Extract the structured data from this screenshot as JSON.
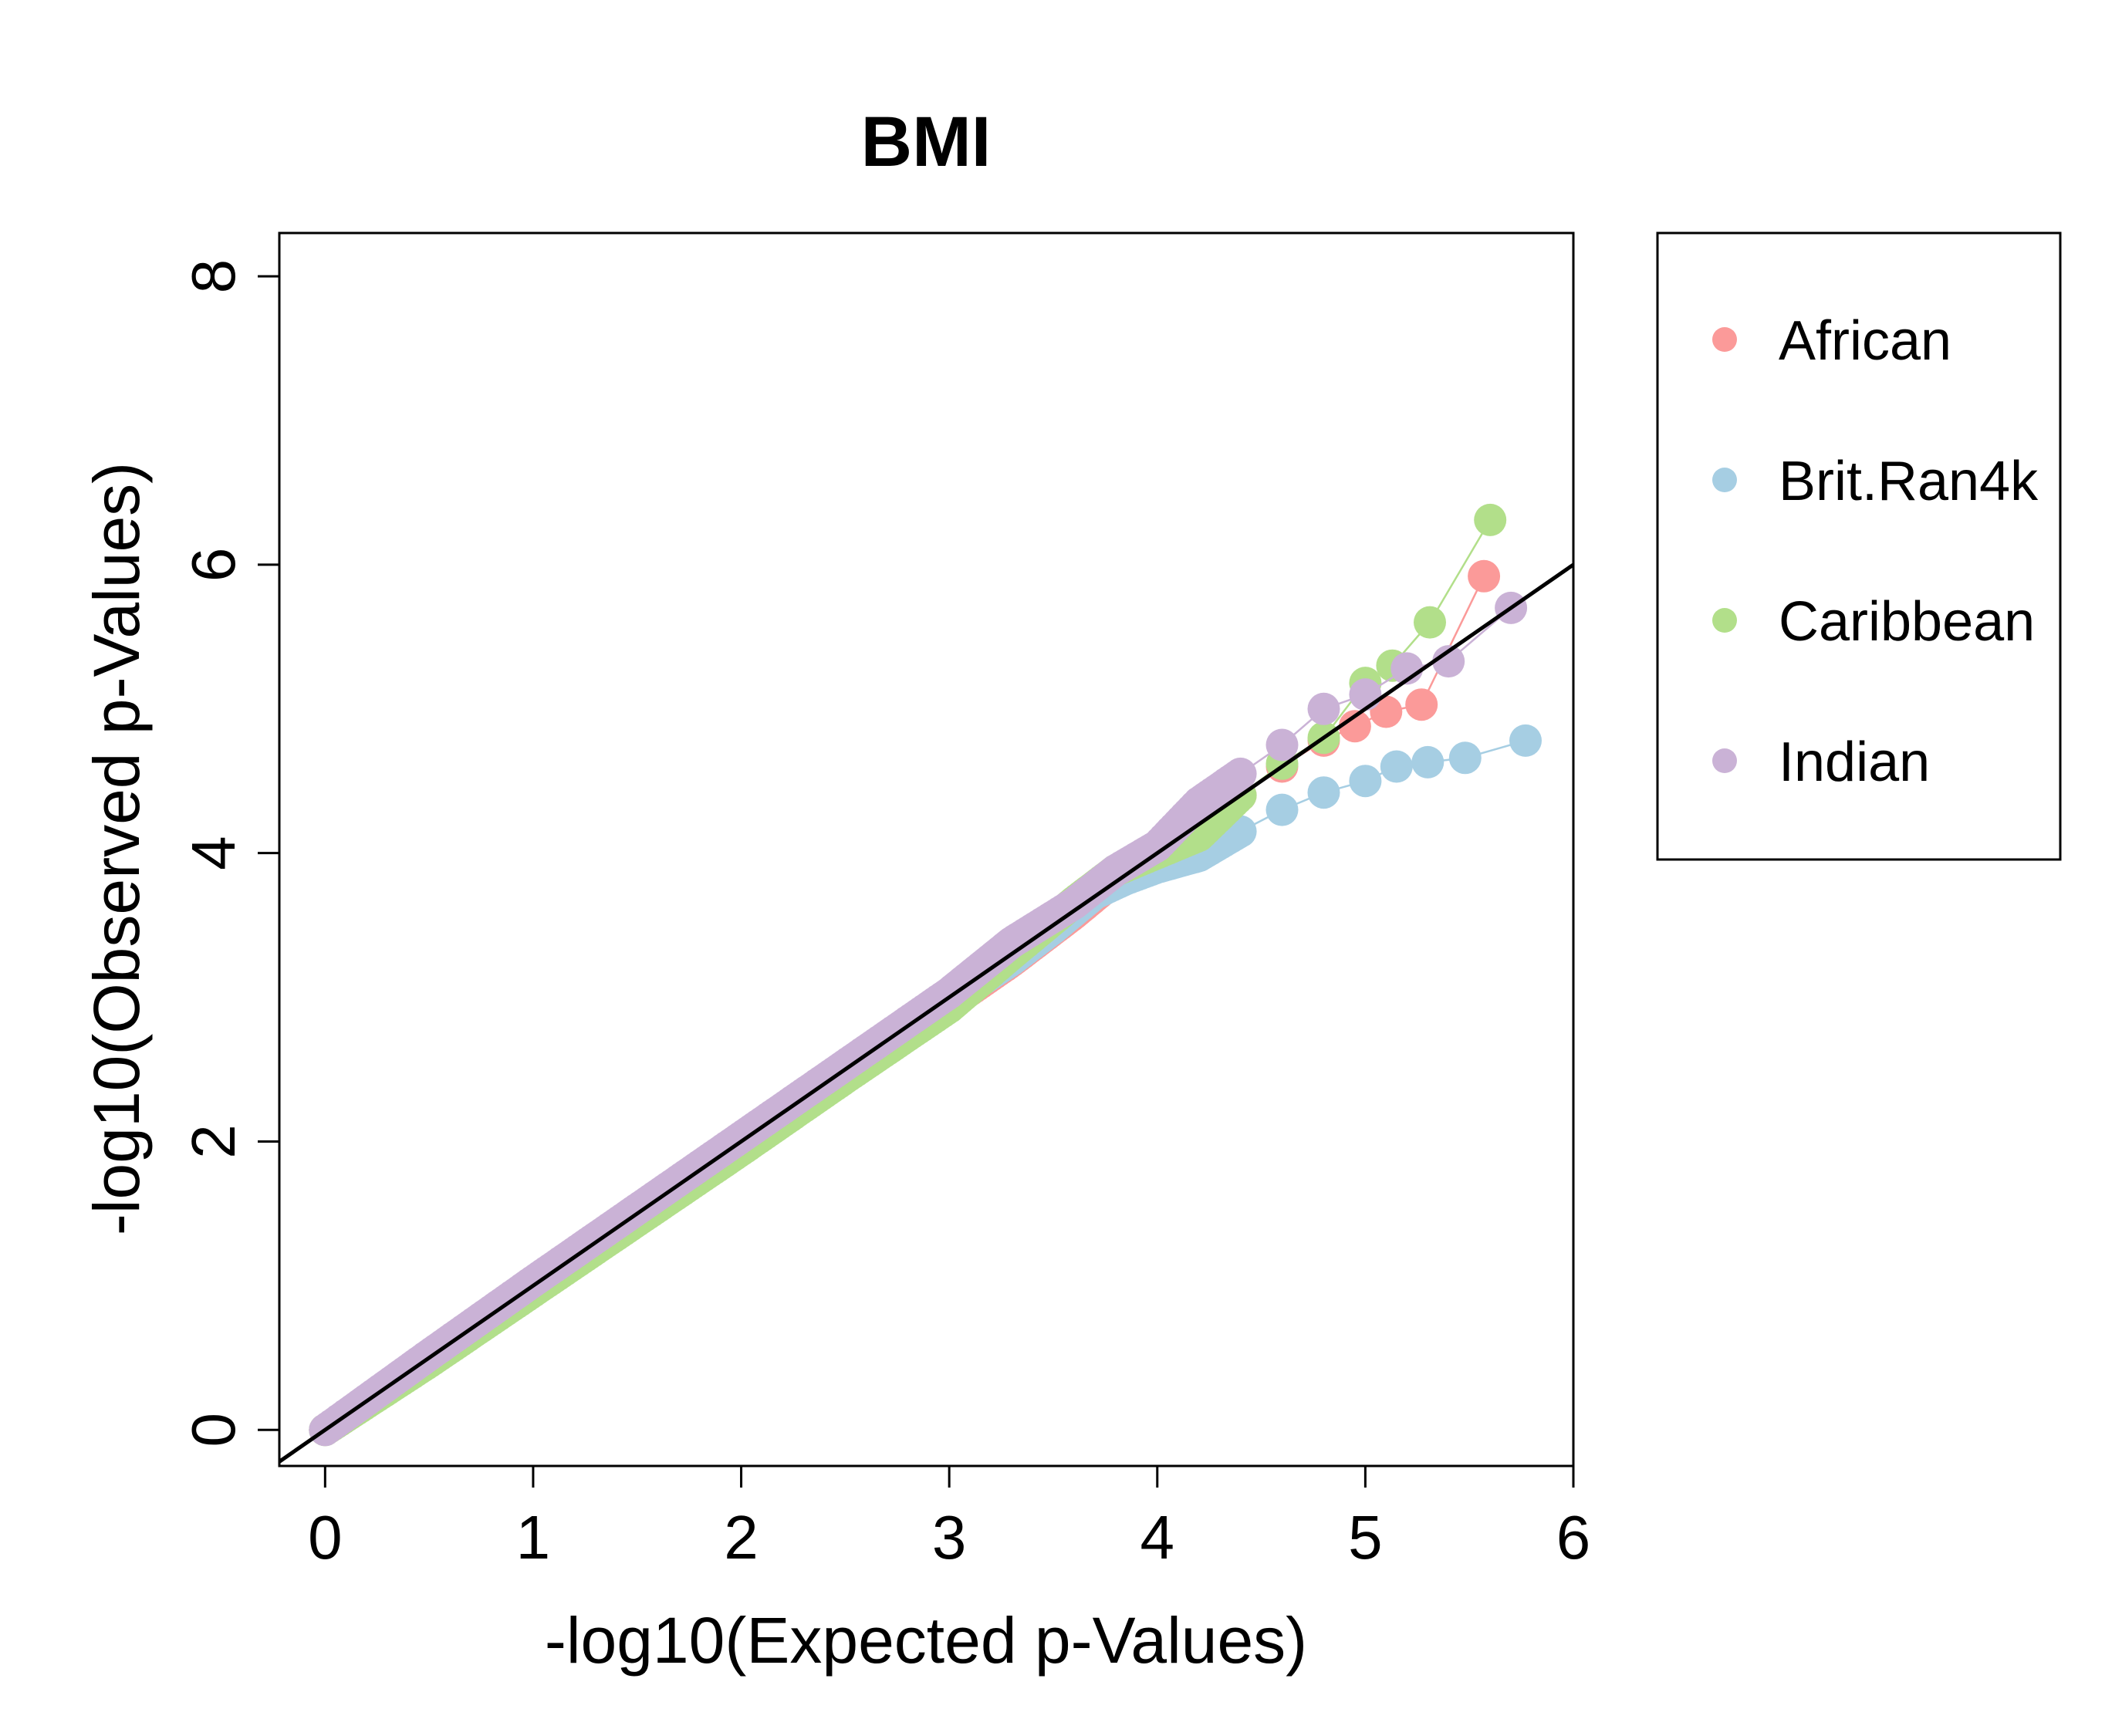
{
  "chart_data": {
    "type": "scatter",
    "title": "BMI",
    "xlabel": "-log10(Expected p-Values)",
    "ylabel": "-log10(Observed p-Values)",
    "xlim": [
      -0.22,
      6.0
    ],
    "ylim": [
      -0.25,
      8.3
    ],
    "xticks": [
      0,
      1,
      2,
      3,
      4,
      5,
      6
    ],
    "yticks": [
      0,
      2,
      4,
      6,
      8
    ],
    "grid": false,
    "legend_position": "outside-right",
    "reference_line": {
      "type": "identity",
      "color": "#000000"
    },
    "series": [
      {
        "name": "African",
        "color": "#fb9a99",
        "points": [
          [
            0,
            0
          ],
          [
            0.5,
            0.48
          ],
          [
            1,
            0.97
          ],
          [
            1.5,
            1.46
          ],
          [
            2,
            1.95
          ],
          [
            2.5,
            2.45
          ],
          [
            3,
            2.95
          ],
          [
            3.3,
            3.25
          ],
          [
            3.6,
            3.58
          ],
          [
            3.8,
            3.82
          ],
          [
            4,
            4.0
          ],
          [
            4.2,
            4.2
          ],
          [
            4.4,
            4.4
          ],
          [
            4.6,
            4.6
          ],
          [
            4.8,
            4.78
          ],
          [
            4.95,
            4.88
          ],
          [
            5.1,
            4.98
          ],
          [
            5.27,
            5.03
          ],
          [
            5.57,
            5.92
          ]
        ]
      },
      {
        "name": "Brit.Ran4k",
        "color": "#a6cee3",
        "points": [
          [
            0,
            0
          ],
          [
            0.5,
            0.49
          ],
          [
            1,
            0.98
          ],
          [
            1.5,
            1.48
          ],
          [
            2,
            1.97
          ],
          [
            2.5,
            2.47
          ],
          [
            3,
            2.97
          ],
          [
            3.3,
            3.26
          ],
          [
            3.5,
            3.48
          ],
          [
            3.7,
            3.72
          ],
          [
            3.85,
            3.82
          ],
          [
            4,
            3.9
          ],
          [
            4.2,
            3.98
          ],
          [
            4.4,
            4.15
          ],
          [
            4.6,
            4.3
          ],
          [
            4.8,
            4.42
          ],
          [
            5.0,
            4.5
          ],
          [
            5.15,
            4.6
          ],
          [
            5.3,
            4.63
          ],
          [
            5.48,
            4.66
          ],
          [
            5.77,
            4.78
          ]
        ]
      },
      {
        "name": "Caribbean",
        "color": "#b2df8a",
        "points": [
          [
            0,
            0
          ],
          [
            0.5,
            0.47
          ],
          [
            1,
            0.96
          ],
          [
            1.5,
            1.45
          ],
          [
            2,
            1.94
          ],
          [
            2.5,
            2.44
          ],
          [
            3,
            2.93
          ],
          [
            3.3,
            3.3
          ],
          [
            3.6,
            3.66
          ],
          [
            3.8,
            3.88
          ],
          [
            4.0,
            4.0
          ],
          [
            4.2,
            4.12
          ],
          [
            4.4,
            4.4
          ],
          [
            4.6,
            4.62
          ],
          [
            4.8,
            4.8
          ],
          [
            5.0,
            5.18
          ],
          [
            5.13,
            5.3
          ],
          [
            5.31,
            5.6
          ],
          [
            5.6,
            6.31
          ]
        ]
      },
      {
        "name": "Indian",
        "color": "#cab2d6",
        "points": [
          [
            0,
            0
          ],
          [
            0.5,
            0.52
          ],
          [
            1,
            1.03
          ],
          [
            1.5,
            1.53
          ],
          [
            2,
            2.03
          ],
          [
            2.5,
            2.53
          ],
          [
            3,
            3.03
          ],
          [
            3.3,
            3.38
          ],
          [
            3.6,
            3.65
          ],
          [
            3.8,
            3.88
          ],
          [
            4.0,
            4.05
          ],
          [
            4.2,
            4.35
          ],
          [
            4.4,
            4.55
          ],
          [
            4.6,
            4.75
          ],
          [
            4.8,
            5.0
          ],
          [
            5.0,
            5.1
          ],
          [
            5.2,
            5.28
          ],
          [
            5.4,
            5.33
          ],
          [
            5.7,
            5.7
          ]
        ]
      }
    ]
  }
}
